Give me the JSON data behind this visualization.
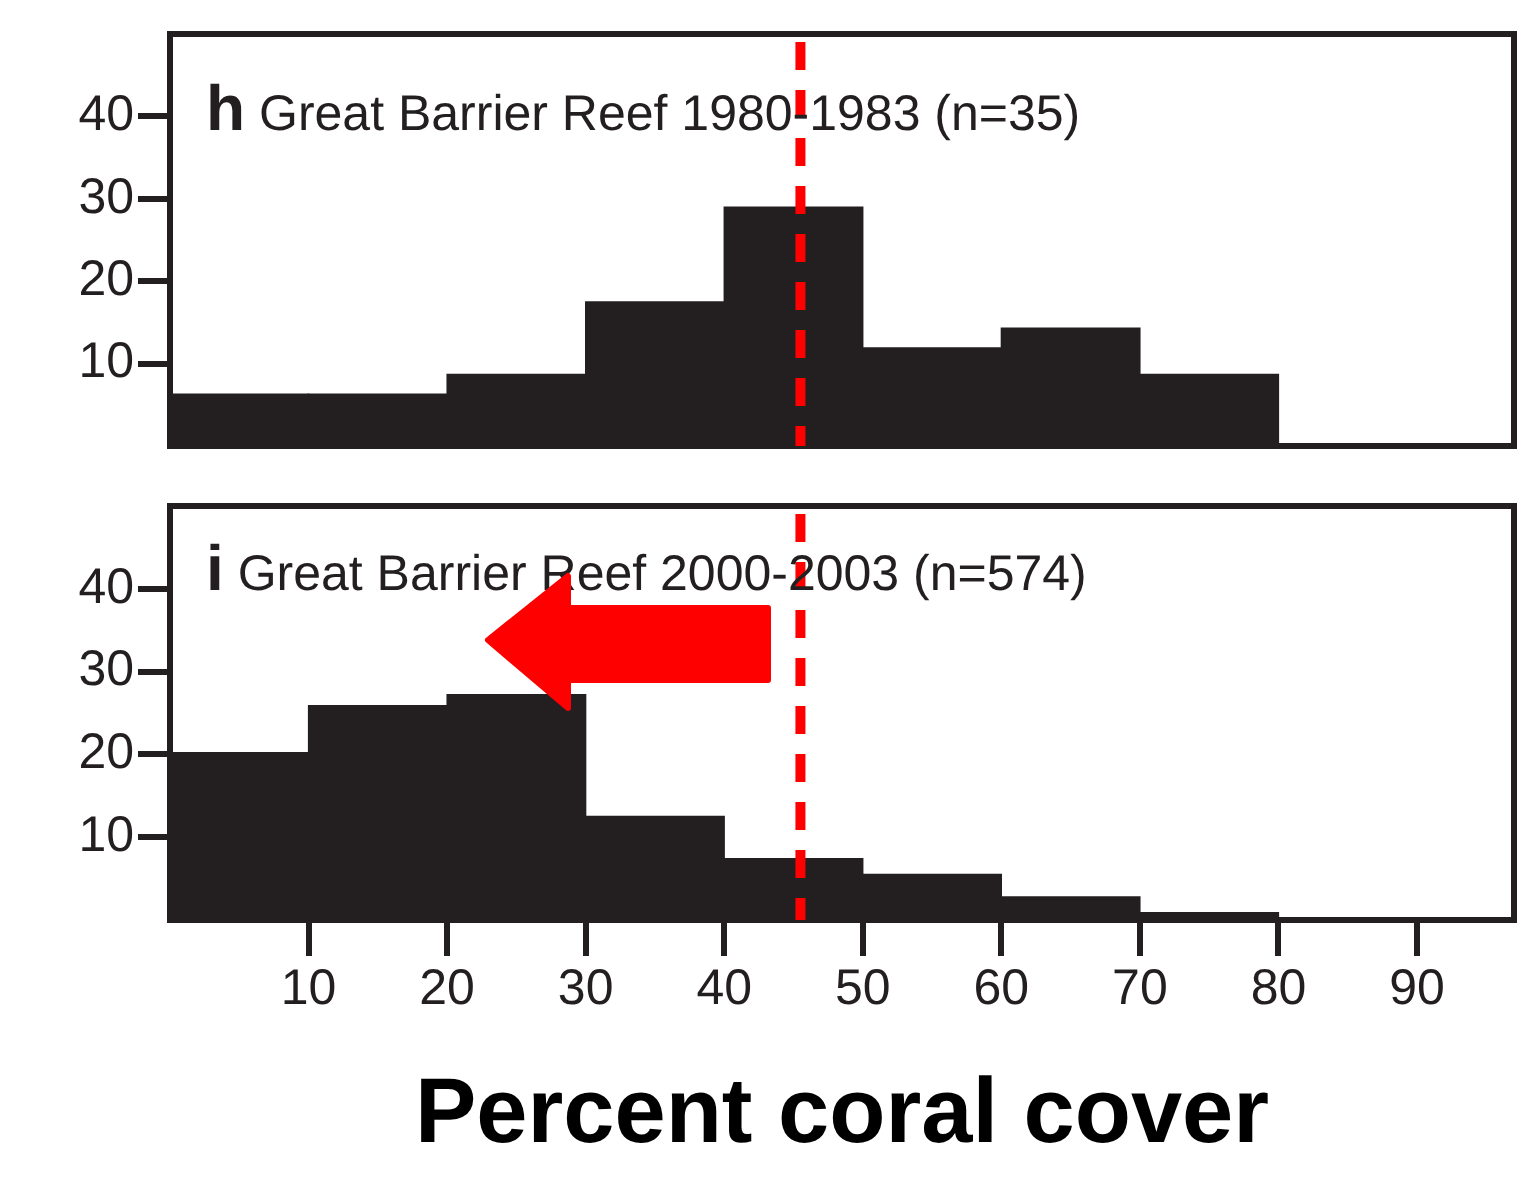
{
  "chart_data": [
    {
      "type": "histogram",
      "title": "h Great Barrier Reef 1980-1983 (n=35)",
      "bins": [
        0,
        10,
        20,
        30,
        40,
        50,
        60,
        70,
        80
      ],
      "values": [
        6.3,
        6.3,
        8.7,
        17.5,
        29,
        11.9,
        14.3,
        8.7
      ],
      "color": "#231f20",
      "xlim": [
        0,
        97
      ],
      "ylim": [
        0,
        50
      ],
      "yticks": [
        10,
        20,
        30,
        40
      ],
      "tick_labels": "y",
      "ref_lines": [
        {
          "axis": "x",
          "value": 45.5,
          "color": "#ff0000",
          "line_style": "dashed"
        }
      ]
    },
    {
      "type": "histogram",
      "title": "i Great Barrier Reef 2000-2003 (n=574)",
      "bins": [
        0,
        10,
        20,
        30,
        40,
        50,
        60,
        70,
        80
      ],
      "values": [
        20.2,
        25.9,
        27.2,
        12.5,
        7.4,
        5.5,
        2.8,
        0.9
      ],
      "color": "#231f20",
      "xlim": [
        0,
        97
      ],
      "ylim": [
        0,
        50
      ],
      "yticks": [
        10,
        20,
        30,
        40
      ],
      "xticks": [
        10,
        20,
        30,
        40,
        50,
        60,
        70,
        80,
        90
      ],
      "xlabel": "Percent coral cover",
      "ref_lines": [
        {
          "axis": "x",
          "value": 45.5,
          "color": "#ff0000",
          "line_style": "dashed"
        }
      ]
    }
  ]
}
